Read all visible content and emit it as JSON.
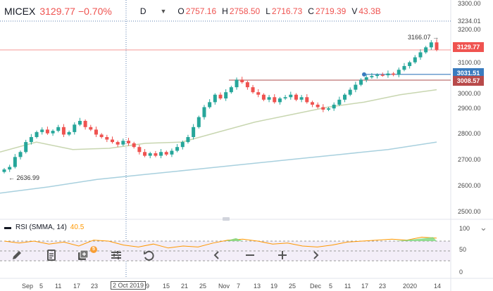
{
  "header": {
    "symbol": "MICEX",
    "price": "3129.77",
    "change": "−0.70%",
    "interval": "D",
    "caret": "▼",
    "open_k": "O",
    "open_v": "2757.16",
    "high_k": "H",
    "high_v": "2758.50",
    "low_k": "L",
    "low_v": "2716.73",
    "close_k": "C",
    "close_v": "2719.39",
    "vol_k": "V",
    "vol_v": "43.3B"
  },
  "price_axis": {
    "labels": [
      "3300.00",
      "3234.01",
      "3200.00",
      "3100.00",
      "3000.00",
      "2900.00",
      "2800.00",
      "2700.00",
      "2600.00",
      "2500.00"
    ],
    "tags": {
      "last": "3129.77",
      "blue": "3031.51",
      "red": "3008.57"
    },
    "colors": {
      "last": "#ef5350",
      "blue": "#3a7bbf",
      "red": "#b84a4a"
    }
  },
  "annotations": {
    "high": "3166.07 →",
    "low": "← 2636.99"
  },
  "rsi": {
    "label": "RSI (SMMA, 14)",
    "value": "40.5",
    "axis": [
      "100",
      "50",
      "0"
    ],
    "settings_icon": "collapse-icon"
  },
  "toolbar": {
    "badge": "5",
    "icons": [
      "pencil-icon",
      "document-icon",
      "add-indicator-icon",
      "sliders-icon",
      "undo-icon",
      "chevron-left-icon",
      "minus-icon",
      "plus-icon",
      "chevron-right-icon"
    ]
  },
  "x_axis": {
    "labels": [
      "Sep",
      "5",
      "11",
      "17",
      "23",
      "2 Oct 2019",
      "9",
      "15",
      "21",
      "25",
      "Nov",
      "7",
      "13",
      "19",
      "25",
      "Dec",
      "5",
      "11",
      "17",
      "23",
      "2020",
      "14"
    ]
  },
  "chart_data": {
    "type": "candlestick",
    "ylim": [
      2450,
      3330
    ],
    "y_ticks": [
      2500,
      2600,
      2700,
      2800,
      2900,
      3000,
      3100,
      3200,
      3300
    ],
    "highest": 3166.07,
    "lowest": 2636.99,
    "last_price": 3129.77,
    "horizontal_lines": [
      3031.51,
      3008.57
    ],
    "candles_close": [
      2650,
      2660,
      2700,
      2720,
      2760,
      2780,
      2800,
      2810,
      2795,
      2805,
      2820,
      2790,
      2800,
      2830,
      2845,
      2820,
      2810,
      2790,
      2780,
      2770,
      2760,
      2750,
      2765,
      2755,
      2740,
      2720,
      2705,
      2715,
      2705,
      2720,
      2710,
      2725,
      2740,
      2760,
      2780,
      2820,
      2860,
      2900,
      2920,
      2950,
      2935,
      2960,
      2980,
      3010,
      3000,
      2980,
      2960,
      2950,
      2930,
      2940,
      2920,
      2935,
      2940,
      2950,
      2930,
      2940,
      2920,
      2910,
      2900,
      2890,
      2895,
      2910,
      2930,
      2950,
      2970,
      2990,
      3010,
      3020,
      3025,
      3030,
      3028,
      3035,
      3030,
      3050,
      3065,
      3080,
      3100,
      3120,
      3140,
      3160,
      3130
    ],
    "ma_green": [
      2720,
      2760,
      2730,
      2735,
      2755,
      2760,
      2800,
      2840,
      2870,
      2900,
      2920,
      2950,
      2970
    ],
    "ma_blue": [
      2555,
      2580,
      2610,
      2630,
      2650,
      2670,
      2690,
      2710,
      2730,
      2760
    ],
    "rsi_series": [
      70,
      66,
      70,
      64,
      68,
      60,
      72,
      70,
      62,
      58,
      64,
      56,
      60,
      58,
      66,
      72,
      74,
      70,
      64,
      66,
      60,
      58,
      62,
      68,
      70,
      72,
      74,
      72,
      78,
      76
    ]
  }
}
